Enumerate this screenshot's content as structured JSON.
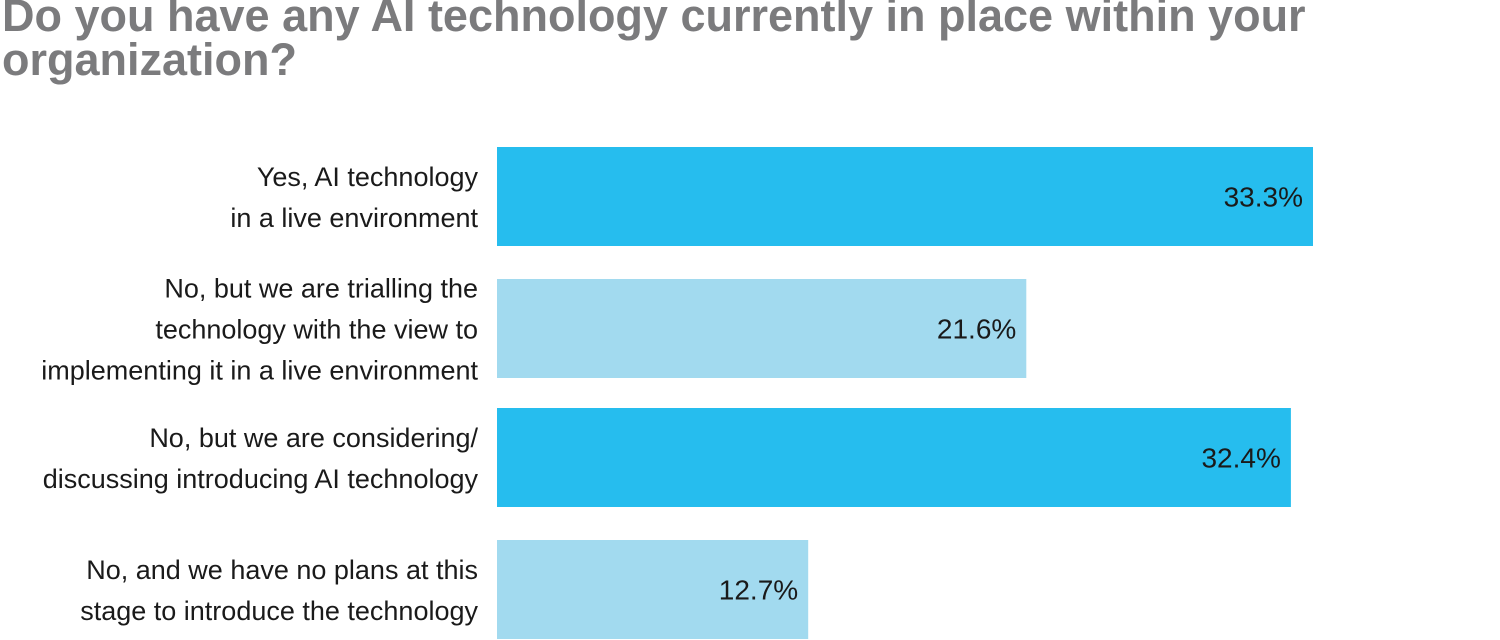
{
  "chart_data": {
    "type": "bar",
    "orientation": "horizontal",
    "title": "Do you have any AI technology currently in place within your organization?",
    "categories": [
      [
        "Yes, AI technology",
        "in a live environment"
      ],
      [
        "No, but we are trialling the",
        "technology with the view to",
        "implementing it in a live environment"
      ],
      [
        "No, but we are considering/",
        "discussing introducing AI technology"
      ],
      [
        "No, and we have no plans at this",
        "stage to introduce the technology"
      ]
    ],
    "values": [
      33.3,
      21.6,
      32.4,
      12.7
    ],
    "value_labels": [
      "33.3%",
      "21.6%",
      "32.4%",
      "12.7%"
    ],
    "bar_colors": [
      "#26bdee",
      "#a2daef",
      "#26bdee",
      "#a2daef"
    ],
    "xlim": [
      0,
      33.3
    ],
    "grid": false,
    "legend": "none"
  }
}
